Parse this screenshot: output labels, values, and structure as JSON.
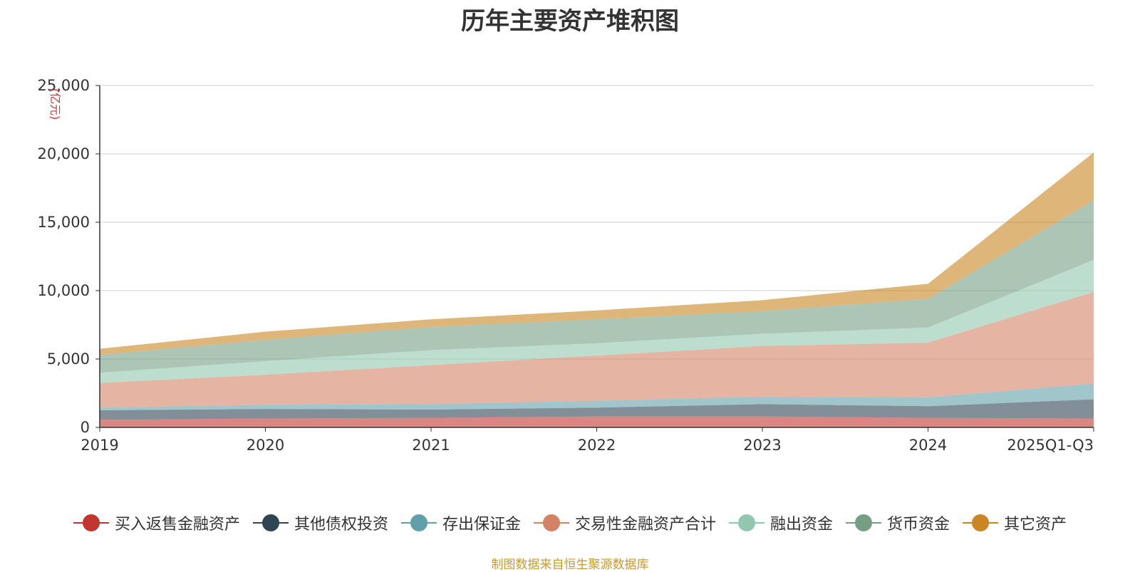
{
  "chart_data": {
    "type": "area",
    "stacked": true,
    "title": "历年主要资产堆积图",
    "unit_label": "(亿元)",
    "categories": [
      "2019",
      "2020",
      "2021",
      "2022",
      "2023",
      "2024",
      "2025Q1-Q3"
    ],
    "ylim": [
      0,
      25000
    ],
    "yticks": [
      0,
      5000,
      10000,
      15000,
      20000,
      25000
    ],
    "ytick_labels": [
      "0",
      "5,000",
      "10,000",
      "15,000",
      "20,000",
      "25,000"
    ],
    "grid": true,
    "legend_position": "bottom",
    "series": [
      {
        "name": "买入返售金融资产",
        "color": "#c23531",
        "values": [
          550,
          650,
          700,
          800,
          800,
          700,
          650
        ]
      },
      {
        "name": "其他债权投资",
        "color": "#2f4554",
        "values": [
          700,
          700,
          600,
          650,
          900,
          850,
          1400
        ]
      },
      {
        "name": "存出保证金",
        "color": "#61a0a8",
        "values": [
          200,
          300,
          400,
          500,
          550,
          650,
          1150
        ]
      },
      {
        "name": "交易性金融资产合计",
        "color": "#d48265",
        "values": [
          1800,
          2200,
          2850,
          3300,
          3700,
          4000,
          6700
        ]
      },
      {
        "name": "融出资金",
        "color": "#91c7ae",
        "values": [
          750,
          1000,
          1100,
          900,
          900,
          1100,
          2350
        ]
      },
      {
        "name": "货币资金",
        "color": "#749f83",
        "values": [
          1300,
          1550,
          1700,
          1750,
          1650,
          2100,
          4350
        ]
      },
      {
        "name": "其它资产",
        "color": "#ca8622",
        "values": [
          450,
          600,
          550,
          650,
          800,
          1100,
          3500
        ]
      }
    ]
  },
  "source_text": "制图数据来自恒生聚源数据库"
}
